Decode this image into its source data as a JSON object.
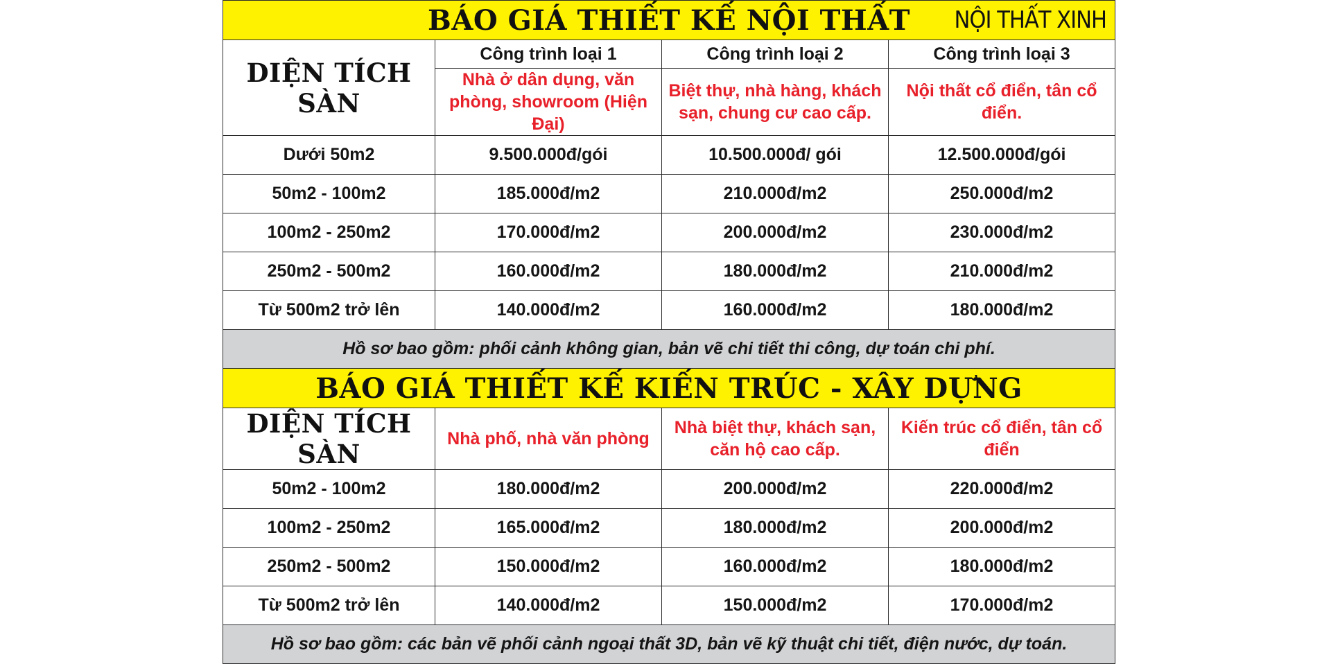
{
  "brand": "NỘI THẤT XINH",
  "interior": {
    "title": "BÁO GIÁ THIẾT KẾ NỘI THẤT",
    "area_label": "DIỆN TÍCH SÀN",
    "columns": [
      {
        "name": "Công trình loại 1",
        "desc": "Nhà ở dân dụng, văn phòng, showroom (Hiện Đại)"
      },
      {
        "name": "Công trình loại 2",
        "desc": "Biệt thự, nhà hàng, khách sạn, chung cư cao cấp."
      },
      {
        "name": "Công trình loại 3",
        "desc": "Nội thất cổ điển, tân cổ điển."
      }
    ],
    "rows": [
      {
        "area": "Dưới 50m2",
        "prices": [
          "9.500.000đ/gói",
          "10.500.000đ/ gói",
          "12.500.000đ/gói"
        ]
      },
      {
        "area": "50m2 - 100m2",
        "prices": [
          "185.000đ/m2",
          "210.000đ/m2",
          "250.000đ/m2"
        ]
      },
      {
        "area": "100m2 - 250m2",
        "prices": [
          "170.000đ/m2",
          "200.000đ/m2",
          "230.000đ/m2"
        ]
      },
      {
        "area": "250m2 - 500m2",
        "prices": [
          "160.000đ/m2",
          "180.000đ/m2",
          "210.000đ/m2"
        ]
      },
      {
        "area": "Từ 500m2 trở lên",
        "prices": [
          "140.000đ/m2",
          "160.000đ/m2",
          "180.000đ/m2"
        ]
      }
    ],
    "note": "Hồ sơ bao gồm: phối cảnh không gian, bản vẽ chi tiết thi công, dự toán chi phí."
  },
  "architecture": {
    "title": "BÁO GIÁ THIẾT KẾ KIẾN TRÚC - XÂY DỰNG",
    "area_label": "DIỆN TÍCH SÀN",
    "columns": [
      {
        "desc": "Nhà phố, nhà văn phòng"
      },
      {
        "desc": "Nhà biệt thự, khách sạn, căn hộ cao cấp."
      },
      {
        "desc": "Kiến trúc cổ điển, tân cổ điển"
      }
    ],
    "rows": [
      {
        "area": "50m2 - 100m2",
        "prices": [
          "180.000đ/m2",
          "200.000đ/m2",
          "220.000đ/m2"
        ]
      },
      {
        "area": "100m2 - 250m2",
        "prices": [
          "165.000đ/m2",
          "180.000đ/m2",
          "200.000đ/m2"
        ]
      },
      {
        "area": "250m2 - 500m2",
        "prices": [
          "150.000đ/m2",
          "160.000đ/m2",
          "180.000đ/m2"
        ]
      },
      {
        "area": "Từ 500m2 trở lên",
        "prices": [
          "140.000đ/m2",
          "150.000đ/m2",
          "170.000đ/m2"
        ]
      }
    ],
    "note": "Hồ sơ bao gồm: các bản vẽ phối cảnh ngoại thất 3D, bản vẽ kỹ thuật chi tiết, điện nước, dự toán."
  },
  "colors": {
    "header_yellow": "#fff200",
    "note_gray": "#d2d3d5",
    "accent_red": "#e8202a"
  }
}
